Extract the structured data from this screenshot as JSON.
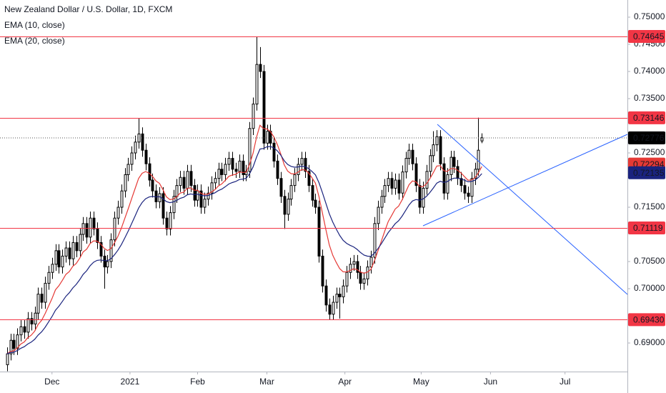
{
  "chart_data": {
    "type": "candlestick",
    "title": "New Zealand Dollar / U.S. Dollar, 1D, FXCM",
    "indicators": [
      {
        "name": "EMA (10, close)",
        "period": 10,
        "color": "#e53935"
      },
      {
        "name": "EMA (20, close)",
        "period": 20,
        "color": "#1a237e"
      }
    ],
    "up_color": "#ffffff",
    "down_color": "#000000",
    "ylim": [
      0.68474,
      0.75316
    ],
    "yticks": [
      {
        "value": 0.75,
        "label": "0.75000"
      },
      {
        "value": 0.745,
        "label": "0.74500"
      },
      {
        "value": 0.74,
        "label": "0.74000"
      },
      {
        "value": 0.735,
        "label": "0.73500"
      },
      {
        "value": 0.725,
        "label": "0.72500"
      },
      {
        "value": 0.715,
        "label": "0.71500"
      },
      {
        "value": 0.705,
        "label": "0.70500"
      },
      {
        "value": 0.7,
        "label": "0.70000"
      },
      {
        "value": 0.69,
        "label": "0.69000"
      }
    ],
    "xlim": [
      -2,
      179
    ],
    "xticks": [
      {
        "value": 13,
        "label": "Dec"
      },
      {
        "value": 35.5,
        "label": "2021"
      },
      {
        "value": 55,
        "label": "Feb"
      },
      {
        "value": 75,
        "label": "Mar"
      },
      {
        "value": 97.5,
        "label": "Apr"
      },
      {
        "value": 119.5,
        "label": "May"
      },
      {
        "value": 139.5,
        "label": "Jun"
      },
      {
        "value": 161,
        "label": "Jul"
      }
    ],
    "levels": [
      {
        "value": 0.74645,
        "label": "0.74645"
      },
      {
        "value": 0.73146,
        "label": "0.73146"
      },
      {
        "value": 0.71119,
        "label": "0.71119"
      },
      {
        "value": 0.6943,
        "label": "0.69430"
      }
    ],
    "level_color": "#f23645",
    "price_labels": [
      {
        "value": 0.72778,
        "label": "0.72778",
        "color": "#787b86"
      },
      {
        "value": 0.72776,
        "label": "0.72776",
        "color": "#000000"
      },
      {
        "value": 0.72294,
        "label": "0.72294",
        "color": "#e53935"
      },
      {
        "value": 0.72135,
        "label": "0.72135",
        "color": "#1a237e"
      }
    ],
    "last_price": 0.72776,
    "ohlc": [
      [
        0.686,
        0.6892,
        0.6848,
        0.688
      ],
      [
        0.688,
        0.6917,
        0.6868,
        0.6905
      ],
      [
        0.6905,
        0.6917,
        0.6878,
        0.689
      ],
      [
        0.689,
        0.6927,
        0.6878,
        0.6915
      ],
      [
        0.6915,
        0.6942,
        0.6903,
        0.693
      ],
      [
        0.693,
        0.6942,
        0.6908,
        0.692
      ],
      [
        0.692,
        0.6957,
        0.6908,
        0.6945
      ],
      [
        0.6945,
        0.6957,
        0.6923,
        0.6935
      ],
      [
        0.6935,
        0.6967,
        0.6923,
        0.6955
      ],
      [
        0.6955,
        0.7002,
        0.6943,
        0.699
      ],
      [
        0.699,
        0.7002,
        0.6963,
        0.6975
      ],
      [
        0.6975,
        0.7022,
        0.6963,
        0.701
      ],
      [
        0.701,
        0.7042,
        0.6998,
        0.703
      ],
      [
        0.703,
        0.7057,
        0.7018,
        0.7045
      ],
      [
        0.7045,
        0.7082,
        0.7033,
        0.707
      ],
      [
        0.707,
        0.7082,
        0.7028,
        0.704
      ],
      [
        0.704,
        0.7072,
        0.7028,
        0.706
      ],
      [
        0.706,
        0.7087,
        0.7048,
        0.7075
      ],
      [
        0.7075,
        0.7087,
        0.7043,
        0.7055
      ],
      [
        0.7055,
        0.7097,
        0.7043,
        0.7085
      ],
      [
        0.7085,
        0.7097,
        0.7058,
        0.707
      ],
      [
        0.707,
        0.7112,
        0.7058,
        0.71
      ],
      [
        0.71,
        0.7132,
        0.7088,
        0.712
      ],
      [
        0.712,
        0.7132,
        0.7083,
        0.7095
      ],
      [
        0.7095,
        0.7142,
        0.7083,
        0.713
      ],
      [
        0.713,
        0.7142,
        0.7098,
        0.711
      ],
      [
        0.711,
        0.7122,
        0.7073,
        0.7085
      ],
      [
        0.7085,
        0.7097,
        0.7048,
        0.706
      ],
      [
        0.706,
        0.7072,
        0.7,
        0.704
      ],
      [
        0.704,
        0.7062,
        0.7028,
        0.705
      ],
      [
        0.705,
        0.7102,
        0.7038,
        0.709
      ],
      [
        0.709,
        0.7142,
        0.7078,
        0.713
      ],
      [
        0.713,
        0.7162,
        0.7118,
        0.715
      ],
      [
        0.715,
        0.7192,
        0.7138,
        0.718
      ],
      [
        0.718,
        0.7222,
        0.7168,
        0.721
      ],
      [
        0.721,
        0.7241,
        0.7198,
        0.7229
      ],
      [
        0.7229,
        0.7262,
        0.7217,
        0.725
      ],
      [
        0.725,
        0.7282,
        0.7238,
        0.727
      ],
      [
        0.727,
        0.7314,
        0.7258,
        0.7285
      ],
      [
        0.7285,
        0.7297,
        0.7243,
        0.7255
      ],
      [
        0.7255,
        0.7267,
        0.7218,
        0.723
      ],
      [
        0.723,
        0.7242,
        0.7188,
        0.72
      ],
      [
        0.72,
        0.7212,
        0.7168,
        0.718
      ],
      [
        0.718,
        0.7192,
        0.7148,
        0.716
      ],
      [
        0.716,
        0.7187,
        0.7148,
        0.7175
      ],
      [
        0.7175,
        0.7187,
        0.7118,
        0.713
      ],
      [
        0.713,
        0.7142,
        0.7098,
        0.711
      ],
      [
        0.711,
        0.7152,
        0.7098,
        0.714
      ],
      [
        0.714,
        0.7182,
        0.7128,
        0.717
      ],
      [
        0.717,
        0.7202,
        0.7158,
        0.719
      ],
      [
        0.719,
        0.7217,
        0.7178,
        0.7205
      ],
      [
        0.7205,
        0.7217,
        0.7173,
        0.7185
      ],
      [
        0.7185,
        0.7228,
        0.7173,
        0.7216
      ],
      [
        0.7216,
        0.7228,
        0.7178,
        0.719
      ],
      [
        0.719,
        0.7202,
        0.7151,
        0.7163
      ],
      [
        0.7163,
        0.7192,
        0.7151,
        0.718
      ],
      [
        0.718,
        0.7192,
        0.7138,
        0.715
      ],
      [
        0.715,
        0.7177,
        0.7138,
        0.7165
      ],
      [
        0.7165,
        0.7188,
        0.7153,
        0.7176
      ],
      [
        0.7176,
        0.7207,
        0.7164,
        0.7195
      ],
      [
        0.7195,
        0.7215,
        0.7183,
        0.7203
      ],
      [
        0.7203,
        0.7232,
        0.7191,
        0.722
      ],
      [
        0.722,
        0.7232,
        0.7198,
        0.721
      ],
      [
        0.721,
        0.7241,
        0.7198,
        0.7229
      ],
      [
        0.7229,
        0.7252,
        0.7217,
        0.724
      ],
      [
        0.724,
        0.7252,
        0.7208,
        0.722
      ],
      [
        0.722,
        0.7232,
        0.7204,
        0.7216
      ],
      [
        0.7216,
        0.7247,
        0.7204,
        0.7235
      ],
      [
        0.7235,
        0.7247,
        0.7198,
        0.721
      ],
      [
        0.721,
        0.7228,
        0.7198,
        0.7216
      ],
      [
        0.7216,
        0.7307,
        0.7204,
        0.7295
      ],
      [
        0.7295,
        0.7352,
        0.7283,
        0.734
      ],
      [
        0.734,
        0.7464,
        0.7328,
        0.7413
      ],
      [
        0.7413,
        0.7445,
        0.7388,
        0.74
      ],
      [
        0.74,
        0.7412,
        0.7256,
        0.7268
      ],
      [
        0.7268,
        0.7302,
        0.7256,
        0.729
      ],
      [
        0.729,
        0.7302,
        0.7256,
        0.7268
      ],
      [
        0.7268,
        0.728,
        0.7223,
        0.7235
      ],
      [
        0.7235,
        0.7247,
        0.7191,
        0.7203
      ],
      [
        0.7203,
        0.7215,
        0.7158,
        0.717
      ],
      [
        0.717,
        0.7182,
        0.711,
        0.7137
      ],
      [
        0.7137,
        0.7177,
        0.7125,
        0.7165
      ],
      [
        0.7165,
        0.7202,
        0.7153,
        0.719
      ],
      [
        0.719,
        0.7222,
        0.7178,
        0.721
      ],
      [
        0.721,
        0.7241,
        0.7198,
        0.7229
      ],
      [
        0.7229,
        0.7252,
        0.7217,
        0.724
      ],
      [
        0.724,
        0.7252,
        0.7204,
        0.7216
      ],
      [
        0.7216,
        0.7228,
        0.7178,
        0.719
      ],
      [
        0.719,
        0.7202,
        0.7151,
        0.7163
      ],
      [
        0.7163,
        0.7175,
        0.7138,
        0.715
      ],
      [
        0.715,
        0.7162,
        0.7048,
        0.706
      ],
      [
        0.706,
        0.7072,
        0.6993,
        0.7005
      ],
      [
        0.7005,
        0.7017,
        0.6958,
        0.697
      ],
      [
        0.697,
        0.6982,
        0.6943,
        0.6953
      ],
      [
        0.6953,
        0.6987,
        0.6943,
        0.6975
      ],
      [
        0.6975,
        0.7002,
        0.6963,
        0.699
      ],
      [
        0.699,
        0.7002,
        0.6945,
        0.6985
      ],
      [
        0.6985,
        0.7017,
        0.6973,
        0.7005
      ],
      [
        0.7005,
        0.7042,
        0.6993,
        0.703
      ],
      [
        0.703,
        0.7057,
        0.7018,
        0.7045
      ],
      [
        0.7045,
        0.7062,
        0.7033,
        0.705
      ],
      [
        0.705,
        0.7062,
        0.7018,
        0.703
      ],
      [
        0.703,
        0.7042,
        0.6998,
        0.701
      ],
      [
        0.701,
        0.703,
        0.6998,
        0.7018
      ],
      [
        0.7018,
        0.7052,
        0.7006,
        0.704
      ],
      [
        0.704,
        0.707,
        0.7028,
        0.7058
      ],
      [
        0.7058,
        0.7132,
        0.7046,
        0.712
      ],
      [
        0.712,
        0.7162,
        0.7108,
        0.715
      ],
      [
        0.715,
        0.7182,
        0.7138,
        0.717
      ],
      [
        0.717,
        0.7202,
        0.7158,
        0.719
      ],
      [
        0.719,
        0.7215,
        0.7178,
        0.7203
      ],
      [
        0.7203,
        0.7215,
        0.7173,
        0.7185
      ],
      [
        0.7185,
        0.7212,
        0.7173,
        0.72
      ],
      [
        0.72,
        0.7212,
        0.7164,
        0.7176
      ],
      [
        0.7176,
        0.7227,
        0.7164,
        0.7215
      ],
      [
        0.7215,
        0.7252,
        0.7203,
        0.724
      ],
      [
        0.724,
        0.7267,
        0.7228,
        0.7255
      ],
      [
        0.7255,
        0.7267,
        0.7218,
        0.723
      ],
      [
        0.723,
        0.7242,
        0.7178,
        0.719
      ],
      [
        0.719,
        0.7202,
        0.7138,
        0.715
      ],
      [
        0.715,
        0.7197,
        0.7138,
        0.7185
      ],
      [
        0.7185,
        0.7228,
        0.7173,
        0.7216
      ],
      [
        0.7216,
        0.7257,
        0.7204,
        0.7245
      ],
      [
        0.7245,
        0.729,
        0.7233,
        0.7265
      ],
      [
        0.7265,
        0.7292,
        0.7253,
        0.728
      ],
      [
        0.728,
        0.7292,
        0.7218,
        0.723
      ],
      [
        0.723,
        0.7242,
        0.7164,
        0.7176
      ],
      [
        0.7176,
        0.7222,
        0.7164,
        0.721
      ],
      [
        0.721,
        0.7254,
        0.7198,
        0.7242
      ],
      [
        0.7242,
        0.7254,
        0.7213,
        0.7225
      ],
      [
        0.7225,
        0.7237,
        0.7191,
        0.7203
      ],
      [
        0.7203,
        0.7215,
        0.7178,
        0.719
      ],
      [
        0.719,
        0.7202,
        0.7164,
        0.7176
      ],
      [
        0.7176,
        0.7188,
        0.7158,
        0.717
      ],
      [
        0.717,
        0.7215,
        0.7158,
        0.7203
      ],
      [
        0.7203,
        0.7232,
        0.7191,
        0.722
      ],
      [
        0.722,
        0.7315,
        0.7208,
        0.7255
      ],
      [
        0.7272,
        0.7286,
        0.7268,
        0.7278
      ]
    ]
  }
}
